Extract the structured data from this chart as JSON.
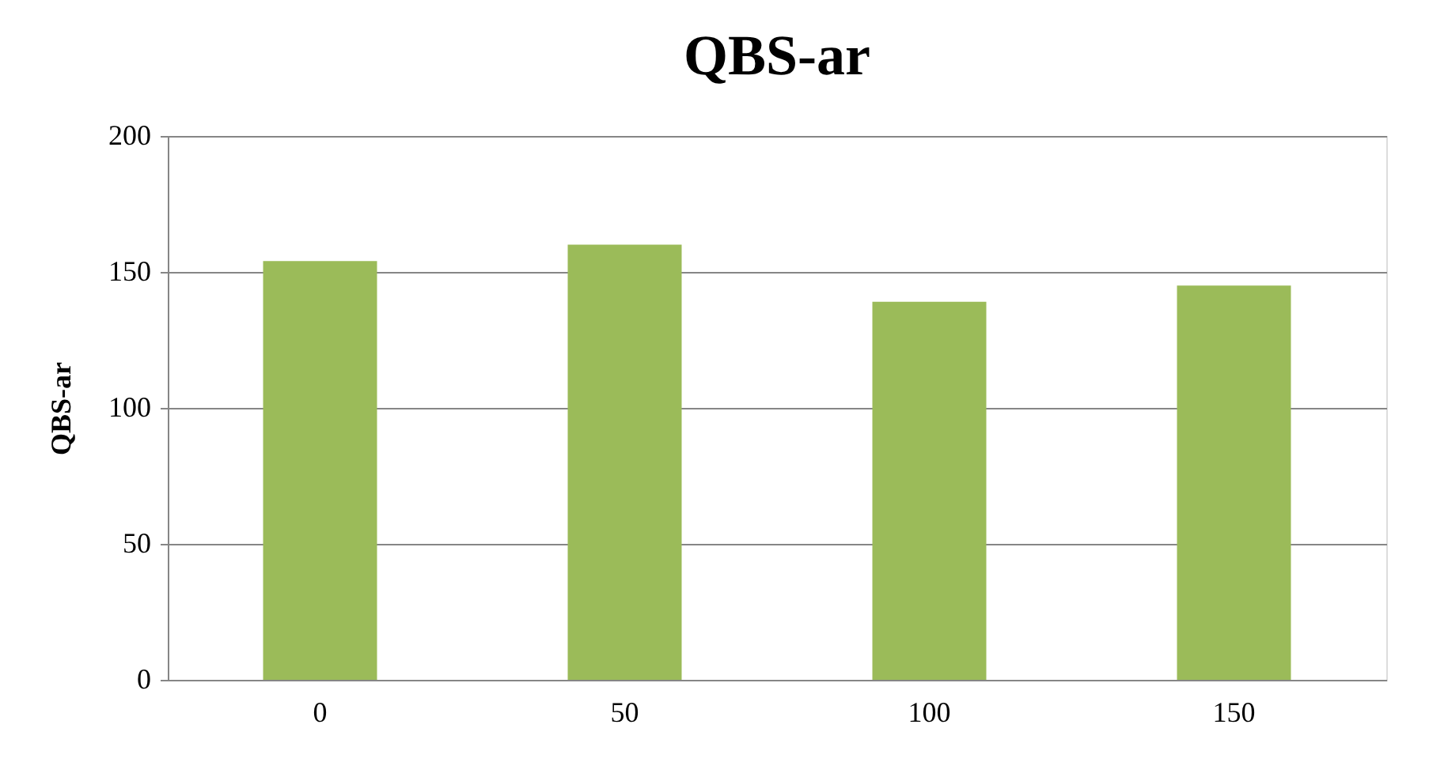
{
  "chart_data": {
    "type": "bar",
    "title": "QBS-ar",
    "ylabel": "QBS-ar",
    "categories": [
      "0",
      "50",
      "100",
      "150"
    ],
    "values": [
      154,
      160,
      139,
      145
    ],
    "color": "#9bbb59",
    "ylim": [
      0,
      200
    ],
    "yticks": [
      0,
      50,
      100,
      150,
      200
    ],
    "grid": "y"
  }
}
